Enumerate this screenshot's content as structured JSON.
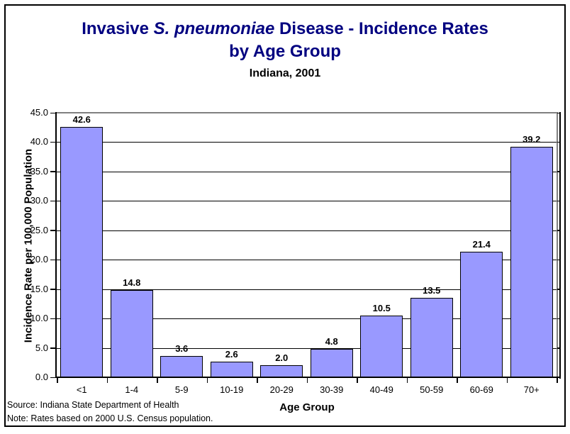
{
  "header": {
    "title_line1_prefix": "Invasive ",
    "title_line1_italic": "S. pneumoniae",
    "title_line1_suffix": " Disease - Incidence Rates",
    "title_line2": "by Age Group",
    "subtitle": "Indiana, 2001",
    "title_color": "#000080"
  },
  "chart_data": {
    "type": "bar",
    "title": "Invasive S. pneumoniae Disease - Incidence Rates by Age Group",
    "subtitle": "Indiana, 2001",
    "categories": [
      "<1",
      "1-4",
      "5-9",
      "10-19",
      "20-29",
      "30-39",
      "40-49",
      "50-59",
      "60-69",
      "70+"
    ],
    "values": [
      42.6,
      14.8,
      3.6,
      2.6,
      2.0,
      4.8,
      10.5,
      13.5,
      21.4,
      39.2
    ],
    "value_labels": [
      "42.6",
      "14.8",
      "3.6",
      "2.6",
      "2.0",
      "4.8",
      "10.5",
      "13.5",
      "21.4",
      "39.2"
    ],
    "xlabel": "Age Group",
    "ylabel": "Incidence Rate per 100,000 Population",
    "ylim": [
      0,
      45
    ],
    "ytick_step": 5,
    "ytick_labels": [
      "0.0",
      "5.0",
      "10.0",
      "15.0",
      "20.0",
      "25.0",
      "30.0",
      "35.0",
      "40.0",
      "45.0"
    ],
    "grid": true,
    "legend": "none",
    "bar_fill_color": "#9999FF",
    "bar_border_color": "#000000",
    "gridline_color": "#000000",
    "plot_border_color": "#808080"
  },
  "footer": {
    "source": "Source: Indiana State Department of Health",
    "note": "Note: Rates based on 2000 U.S. Census population."
  }
}
